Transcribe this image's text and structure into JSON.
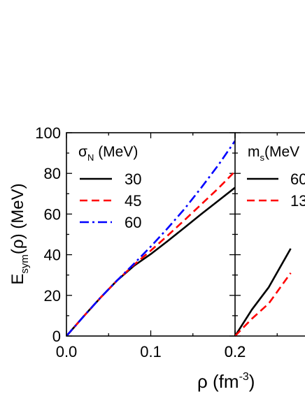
{
  "chart_data": [
    {
      "type": "line",
      "xlabel": "ρ (fm-3)",
      "xlabel_base": "ρ (fm",
      "xlabel_sup": "-3",
      "xlabel_close": ")",
      "ylabel": "Esym(ρ) (MeV)",
      "ylabel_base": "E",
      "ylabel_sub": "sym",
      "ylabel_rest": "(ρ) (MeV)",
      "xlim": [
        0,
        0.2
      ],
      "ylim": [
        0,
        100
      ],
      "x_ticks": [
        {
          "value": 0,
          "label": "0.0"
        },
        {
          "value": 0.1,
          "label": "0.1"
        },
        {
          "value": 0.2,
          "label": "0.2"
        }
      ],
      "y_ticks": [
        {
          "value": 0,
          "label": "0"
        },
        {
          "value": 20,
          "label": "20"
        },
        {
          "value": 40,
          "label": "40"
        },
        {
          "value": 60,
          "label": "60"
        },
        {
          "value": 80,
          "label": "80"
        },
        {
          "value": 100,
          "label": "100"
        }
      ],
      "grid": false,
      "legend": {
        "placement": "top-left",
        "title": "σN (MeV)",
        "title_symbol": "σ",
        "title_sub": "N",
        "title_rest": " (MeV)"
      },
      "series": [
        {
          "name": "30",
          "color": "#000000",
          "dash": "solid",
          "x": [
            0,
            0.02,
            0.04,
            0.06,
            0.08,
            0.1,
            0.12,
            0.14,
            0.16,
            0.18,
            0.2
          ],
          "y": [
            0,
            9.5,
            18.7,
            27.3,
            34.5,
            40.3,
            46.7,
            53.3,
            60.0,
            66.5,
            73
          ]
        },
        {
          "name": "45",
          "color": "#ff0000",
          "dash": "dashed",
          "x": [
            0,
            0.02,
            0.04,
            0.06,
            0.08,
            0.1,
            0.12,
            0.14,
            0.16,
            0.18,
            0.2
          ],
          "y": [
            0,
            9.5,
            18.7,
            27.3,
            35.0,
            42.0,
            49.4,
            57.0,
            64.8,
            72.6,
            81
          ]
        },
        {
          "name": "60",
          "color": "#0000ff",
          "dash": "dashdot",
          "x": [
            0,
            0.02,
            0.04,
            0.06,
            0.08,
            0.1,
            0.12,
            0.14,
            0.16,
            0.18,
            0.2
          ],
          "y": [
            0,
            9.5,
            18.7,
            27.3,
            35.5,
            44.0,
            53.0,
            62.5,
            73.0,
            84.0,
            96
          ]
        }
      ]
    },
    {
      "type": "line",
      "xlim": [
        0.2,
        0.266
      ],
      "ylim": [
        0,
        100
      ],
      "x_ticks": [
        {
          "value": 0.2,
          "label": "0.2"
        }
      ],
      "grid": false,
      "legend": {
        "placement": "top-left",
        "title": "ms(MeV",
        "title_base": "m",
        "title_sub": "s",
        "title_rest": "(MeV"
      },
      "series": [
        {
          "name": "60",
          "color": "#000000",
          "dash": "solid",
          "x": [
            0.2,
            0.22,
            0.24,
            0.266
          ],
          "y": [
            0,
            13,
            24,
            43
          ]
        },
        {
          "name": "13",
          "color": "#ff0000",
          "dash": "dashed",
          "x": [
            0.2,
            0.22,
            0.24,
            0.266
          ],
          "y": [
            0,
            8.5,
            16,
            31
          ]
        }
      ]
    }
  ]
}
